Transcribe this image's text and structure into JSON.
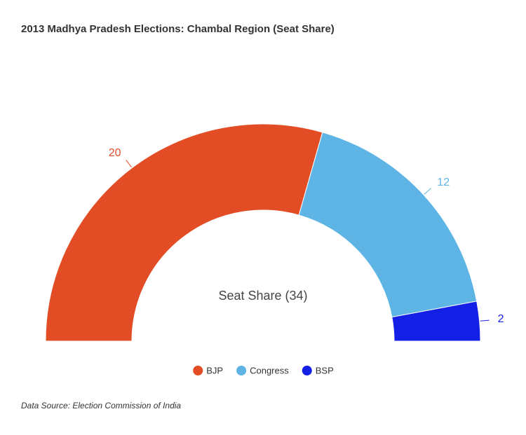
{
  "chart_data": {
    "type": "semi-donut",
    "title": "2013 Madhya Pradesh Elections: Chambal Region (Seat Share)",
    "center_label": "Seat Share (34)",
    "categories": [
      "BJP",
      "Congress",
      "BSP"
    ],
    "values": [
      20,
      12,
      2
    ],
    "colors": [
      "#e34d26",
      "#5eb5e5",
      "#1520e6"
    ],
    "legend": "bottom",
    "source": "Data Source: Election Commission of India"
  }
}
